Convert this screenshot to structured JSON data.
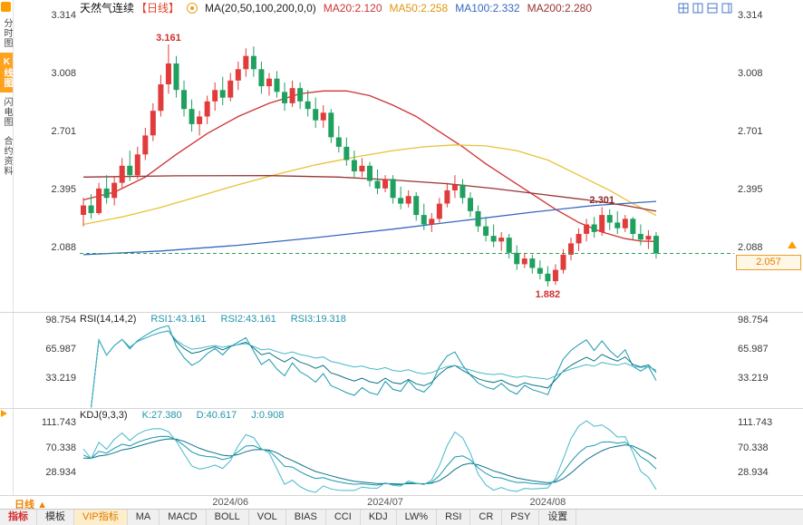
{
  "header": {
    "title": "天然气连续",
    "period_tag": "【日线】",
    "ma_label": "MA(20,50,100,200,0,0)",
    "ma20": "MA20:2.120",
    "ma50": "MA50:2.258",
    "ma100": "MA100:2.332",
    "ma200": "MA200:2.280"
  },
  "sidebar": {
    "items": [
      {
        "label": "分时图",
        "active": false
      },
      {
        "label": "K线图",
        "active": true
      },
      {
        "label": "闪电图",
        "active": false
      },
      {
        "label": "合约资料",
        "active": false
      }
    ]
  },
  "panels": {
    "rsi": {
      "name": "RSI(14,14,2)",
      "v1": "RSI1:43.161",
      "v2": "RSI2:43.161",
      "v3": "RSI3:19.318"
    },
    "kdj": {
      "name": "KDJ(9,3,3)",
      "k": "K:27.380",
      "d": "D:40.617",
      "j": "J:0.908"
    }
  },
  "footer": {
    "period": "日线",
    "period_arrow": "▲",
    "tabs": [
      {
        "label": "指标",
        "color": "red"
      },
      {
        "label": "模板",
        "color": ""
      },
      {
        "label": "VIP指标",
        "color": "orange"
      },
      {
        "label": "MA",
        "color": ""
      },
      {
        "label": "MACD",
        "color": ""
      },
      {
        "label": "BOLL",
        "color": ""
      },
      {
        "label": "VOL",
        "color": ""
      },
      {
        "label": "BIAS",
        "color": ""
      },
      {
        "label": "CCI",
        "color": ""
      },
      {
        "label": "KDJ",
        "color": ""
      },
      {
        "label": "LW%",
        "color": ""
      },
      {
        "label": "RSI",
        "color": ""
      },
      {
        "label": "CR",
        "color": ""
      },
      {
        "label": "PSY",
        "color": ""
      },
      {
        "label": "设置",
        "color": ""
      }
    ]
  },
  "colors": {
    "up": "#e23b3b",
    "down": "#1fa05f",
    "ma20": "#cf3333",
    "ma50": "#e8c238",
    "ma100": "#3868c0",
    "ma200": "#993333",
    "dash": "#2ca05a",
    "teal1": "#1899ad",
    "teal2": "#0d7487",
    "teal3": "#46b8c8",
    "accent": "#ff9d00"
  },
  "chart_data": {
    "type": "candlestick",
    "title": "天然气连续 日线",
    "ylim": [
      1.85,
      3.38
    ],
    "y_ticks": [
      "3.314",
      "3.008",
      "2.701",
      "2.395",
      "2.088"
    ],
    "month_ticks": [
      {
        "index": 19,
        "label": "2024/06"
      },
      {
        "index": 39,
        "label": "2024/07"
      },
      {
        "index": 60,
        "label": "2024/08"
      }
    ],
    "last_price": 2.057,
    "annotations": {
      "peak": {
        "index": 11,
        "text": "3.161"
      },
      "low": {
        "index": 60,
        "text": "1.882"
      },
      "swing": {
        "index": 67,
        "text": "2.301"
      },
      "last": "2.057"
    },
    "candles": [
      [
        2.26,
        2.35,
        2.2,
        2.31
      ],
      [
        2.31,
        2.37,
        2.24,
        2.27
      ],
      [
        2.27,
        2.43,
        2.26,
        2.4
      ],
      [
        2.4,
        2.47,
        2.32,
        2.35
      ],
      [
        2.35,
        2.46,
        2.31,
        2.43
      ],
      [
        2.43,
        2.56,
        2.4,
        2.52
      ],
      [
        2.52,
        2.6,
        2.44,
        2.47
      ],
      [
        2.47,
        2.62,
        2.45,
        2.58
      ],
      [
        2.58,
        2.72,
        2.55,
        2.68
      ],
      [
        2.68,
        2.85,
        2.65,
        2.81
      ],
      [
        2.81,
        3.0,
        2.78,
        2.95
      ],
      [
        2.95,
        3.161,
        2.9,
        3.06
      ],
      [
        3.06,
        3.1,
        2.88,
        2.92
      ],
      [
        2.92,
        2.97,
        2.78,
        2.82
      ],
      [
        2.82,
        2.87,
        2.7,
        2.74
      ],
      [
        2.74,
        2.81,
        2.68,
        2.78
      ],
      [
        2.78,
        2.89,
        2.74,
        2.86
      ],
      [
        2.86,
        2.96,
        2.81,
        2.92
      ],
      [
        2.92,
        2.99,
        2.84,
        2.88
      ],
      [
        2.88,
        3.01,
        2.86,
        2.97
      ],
      [
        2.97,
        3.07,
        2.92,
        3.03
      ],
      [
        3.03,
        3.14,
        2.99,
        3.1
      ],
      [
        3.1,
        3.15,
        2.99,
        3.03
      ],
      [
        3.03,
        3.07,
        2.9,
        2.94
      ],
      [
        2.94,
        3.01,
        2.89,
        2.98
      ],
      [
        2.98,
        3.02,
        2.88,
        2.91
      ],
      [
        2.91,
        2.96,
        2.81,
        2.85
      ],
      [
        2.85,
        2.97,
        2.83,
        2.93
      ],
      [
        2.93,
        2.96,
        2.82,
        2.86
      ],
      [
        2.86,
        2.92,
        2.78,
        2.82
      ],
      [
        2.82,
        2.88,
        2.72,
        2.76
      ],
      [
        2.76,
        2.84,
        2.72,
        2.8
      ],
      [
        2.8,
        2.82,
        2.64,
        2.67
      ],
      [
        2.67,
        2.73,
        2.59,
        2.62
      ],
      [
        2.62,
        2.67,
        2.52,
        2.55
      ],
      [
        2.55,
        2.6,
        2.46,
        2.49
      ],
      [
        2.49,
        2.56,
        2.46,
        2.52
      ],
      [
        2.52,
        2.54,
        2.41,
        2.44
      ],
      [
        2.44,
        2.5,
        2.37,
        2.4
      ],
      [
        2.4,
        2.47,
        2.38,
        2.45
      ],
      [
        2.45,
        2.47,
        2.32,
        2.35
      ],
      [
        2.35,
        2.41,
        2.29,
        2.32
      ],
      [
        2.32,
        2.39,
        2.3,
        2.36
      ],
      [
        2.36,
        2.38,
        2.23,
        2.26
      ],
      [
        2.26,
        2.32,
        2.18,
        2.21
      ],
      [
        2.21,
        2.27,
        2.17,
        2.24
      ],
      [
        2.24,
        2.35,
        2.22,
        2.32
      ],
      [
        2.32,
        2.43,
        2.3,
        2.39
      ],
      [
        2.39,
        2.47,
        2.35,
        2.42
      ],
      [
        2.42,
        2.45,
        2.32,
        2.35
      ],
      [
        2.35,
        2.38,
        2.25,
        2.28
      ],
      [
        2.28,
        2.31,
        2.17,
        2.2
      ],
      [
        2.2,
        2.25,
        2.12,
        2.15
      ],
      [
        2.15,
        2.21,
        2.09,
        2.12
      ],
      [
        2.12,
        2.17,
        2.07,
        2.14
      ],
      [
        2.14,
        2.16,
        2.03,
        2.06
      ],
      [
        2.06,
        2.1,
        1.97,
        2.0
      ],
      [
        2.0,
        2.06,
        1.98,
        2.03
      ],
      [
        2.03,
        2.05,
        1.95,
        1.98
      ],
      [
        1.98,
        2.02,
        1.92,
        1.95
      ],
      [
        1.95,
        1.99,
        1.882,
        1.91
      ],
      [
        1.91,
        2.0,
        1.89,
        1.97
      ],
      [
        1.97,
        2.08,
        1.95,
        2.05
      ],
      [
        2.05,
        2.14,
        2.02,
        2.11
      ],
      [
        2.11,
        2.19,
        2.07,
        2.16
      ],
      [
        2.16,
        2.24,
        2.12,
        2.21
      ],
      [
        2.21,
        2.25,
        2.14,
        2.17
      ],
      [
        2.17,
        2.301,
        2.15,
        2.26
      ],
      [
        2.26,
        2.29,
        2.18,
        2.22
      ],
      [
        2.22,
        2.28,
        2.16,
        2.19
      ],
      [
        2.19,
        2.26,
        2.17,
        2.24
      ],
      [
        2.24,
        2.25,
        2.13,
        2.16
      ],
      [
        2.16,
        2.21,
        2.1,
        2.13
      ],
      [
        2.13,
        2.18,
        2.08,
        2.15
      ],
      [
        2.15,
        2.17,
        2.03,
        2.057
      ]
    ],
    "ma_series": [
      {
        "name": "MA20",
        "color_key": "ma20",
        "end_value": 2.12,
        "points": [
          [
            0,
            2.34
          ],
          [
            4,
            2.38
          ],
          [
            8,
            2.46
          ],
          [
            12,
            2.58
          ],
          [
            16,
            2.69
          ],
          [
            20,
            2.78
          ],
          [
            24,
            2.85
          ],
          [
            28,
            2.9
          ],
          [
            31,
            2.915
          ],
          [
            34,
            2.915
          ],
          [
            37,
            2.89
          ],
          [
            40,
            2.84
          ],
          [
            43,
            2.78
          ],
          [
            46,
            2.7
          ],
          [
            49,
            2.62
          ],
          [
            52,
            2.53
          ],
          [
            55,
            2.45
          ],
          [
            58,
            2.37
          ],
          [
            61,
            2.29
          ],
          [
            64,
            2.22
          ],
          [
            67,
            2.17
          ],
          [
            70,
            2.135
          ],
          [
            72,
            2.122
          ],
          [
            74,
            2.12
          ]
        ]
      },
      {
        "name": "MA50",
        "color_key": "ma50",
        "end_value": 2.258,
        "points": [
          [
            0,
            2.21
          ],
          [
            5,
            2.25
          ],
          [
            10,
            2.3
          ],
          [
            15,
            2.36
          ],
          [
            20,
            2.42
          ],
          [
            25,
            2.475
          ],
          [
            30,
            2.525
          ],
          [
            35,
            2.565
          ],
          [
            40,
            2.6
          ],
          [
            44,
            2.62
          ],
          [
            48,
            2.63
          ],
          [
            52,
            2.625
          ],
          [
            56,
            2.6
          ],
          [
            60,
            2.55
          ],
          [
            64,
            2.47
          ],
          [
            68,
            2.39
          ],
          [
            71,
            2.32
          ],
          [
            74,
            2.258
          ]
        ]
      },
      {
        "name": "MA100",
        "color_key": "ma100",
        "end_value": 2.332,
        "points": [
          [
            0,
            2.05
          ],
          [
            10,
            2.07
          ],
          [
            20,
            2.1
          ],
          [
            30,
            2.14
          ],
          [
            40,
            2.185
          ],
          [
            50,
            2.235
          ],
          [
            58,
            2.275
          ],
          [
            66,
            2.31
          ],
          [
            74,
            2.332
          ]
        ]
      },
      {
        "name": "MA200",
        "color_key": "ma200",
        "end_value": 2.28,
        "points": [
          [
            0,
            2.46
          ],
          [
            12,
            2.467
          ],
          [
            24,
            2.468
          ],
          [
            33,
            2.46
          ],
          [
            40,
            2.445
          ],
          [
            47,
            2.425
          ],
          [
            53,
            2.4
          ],
          [
            59,
            2.37
          ],
          [
            65,
            2.34
          ],
          [
            70,
            2.31
          ],
          [
            74,
            2.28
          ]
        ]
      }
    ],
    "indicators": {
      "rsi": {
        "label": "RSI(14,14,2)",
        "current": [
          43.161,
          43.161,
          19.318
        ],
        "axis_ticks": [
          "98.754",
          "65.987",
          "33.219"
        ]
      },
      "kdj": {
        "label": "KDJ(9,3,3)",
        "current": [
          27.38,
          40.617,
          0.908
        ],
        "axis_ticks": [
          "111.743",
          "70.338",
          "28.934"
        ]
      }
    }
  }
}
